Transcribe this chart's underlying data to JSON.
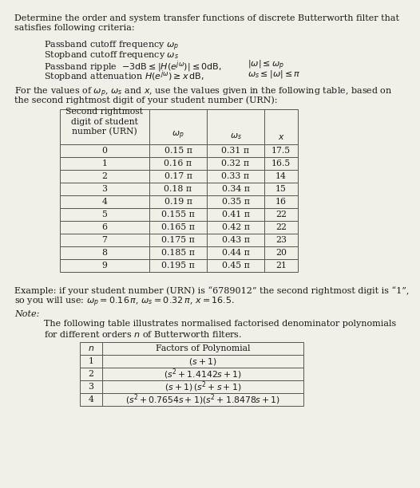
{
  "bg_color": "#f0efe8",
  "text_color": "#1a1a1a",
  "font_family": "DejaVu Serif",
  "fs_main": 8.0,
  "fs_table": 7.8,
  "fs_note": 7.8,
  "table1_rows": [
    [
      "0",
      "0.15 π",
      "0.31 π",
      "17.5"
    ],
    [
      "1",
      "0.16 π",
      "0.32 π",
      "16.5"
    ],
    [
      "2",
      "0.17 π",
      "0.33 π",
      "14"
    ],
    [
      "3",
      "0.18 π",
      "0.34 π",
      "15"
    ],
    [
      "4",
      "0.19 π",
      "0.35 π",
      "16"
    ],
    [
      "5",
      "0.155 π",
      "0.41 π",
      "22"
    ],
    [
      "6",
      "0.165 π",
      "0.42 π",
      "22"
    ],
    [
      "7",
      "0.175 π",
      "0.43 π",
      "23"
    ],
    [
      "8",
      "0.185 π",
      "0.44 π",
      "20"
    ],
    [
      "9",
      "0.195 π",
      "0.45 π",
      "21"
    ]
  ]
}
